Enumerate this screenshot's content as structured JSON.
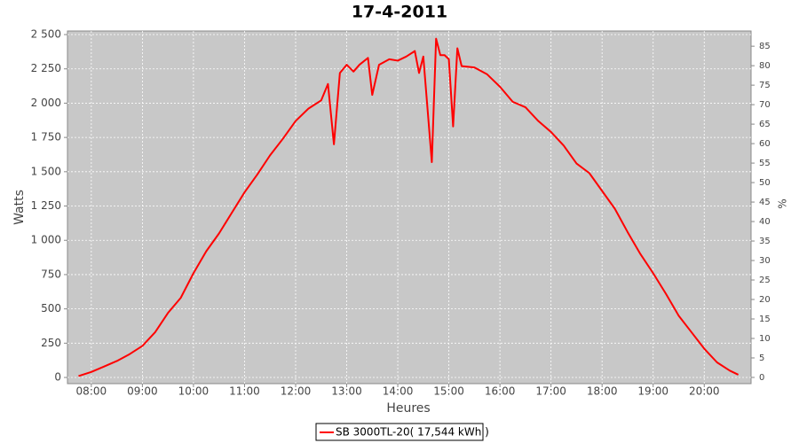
{
  "chart_data": {
    "type": "line",
    "title": "17-4-2011",
    "x_label": "Heures",
    "y_label": "Watts",
    "y2_label": "%",
    "x": [
      "07:45",
      "08:00",
      "08:15",
      "08:30",
      "08:45",
      "09:00",
      "09:15",
      "09:30",
      "09:45",
      "10:00",
      "10:15",
      "10:30",
      "10:45",
      "11:00",
      "11:15",
      "11:30",
      "11:45",
      "12:00",
      "12:15",
      "12:30",
      "12:38",
      "12:45",
      "12:52",
      "13:00",
      "13:08",
      "13:15",
      "13:25",
      "13:30",
      "13:38",
      "13:50",
      "14:00",
      "14:10",
      "14:20",
      "14:25",
      "14:30",
      "14:40",
      "14:45",
      "14:50",
      "14:55",
      "15:00",
      "15:05",
      "15:10",
      "15:15",
      "15:30",
      "15:45",
      "16:00",
      "16:15",
      "16:30",
      "16:45",
      "17:00",
      "17:15",
      "17:30",
      "17:45",
      "18:00",
      "18:15",
      "18:30",
      "18:45",
      "19:00",
      "19:15",
      "19:30",
      "19:45",
      "20:00",
      "20:15",
      "20:30",
      "20:40"
    ],
    "series": [
      {
        "name": "SB 3000TL-20( 17,544 kWh )",
        "color": "#ff0000",
        "values": [
          10,
          40,
          80,
          120,
          170,
          230,
          330,
          470,
          580,
          760,
          920,
          1050,
          1200,
          1350,
          1480,
          1620,
          1740,
          1870,
          1960,
          2020,
          2140,
          1700,
          2220,
          2280,
          2230,
          2280,
          2330,
          2060,
          2280,
          2320,
          2310,
          2340,
          2380,
          2220,
          2340,
          1570,
          2470,
          2350,
          2350,
          2320,
          1830,
          2400,
          2270,
          2260,
          2210,
          2120,
          2010,
          1970,
          1870,
          1790,
          1690,
          1560,
          1490,
          1360,
          1230,
          1060,
          900,
          760,
          610,
          450,
          330,
          210,
          110,
          50,
          20
        ]
      }
    ],
    "xlim": [
      "07:32",
      "20:55"
    ],
    "xticks": [
      "08:00",
      "09:00",
      "10:00",
      "11:00",
      "12:00",
      "13:00",
      "14:00",
      "15:00",
      "16:00",
      "17:00",
      "18:00",
      "19:00",
      "20:00"
    ],
    "ylim": [
      -45,
      2526
    ],
    "yticks": [
      0,
      250,
      500,
      750,
      {
        "value": 1000,
        "label": "1 000"
      },
      {
        "value": 1250,
        "label": "1 250"
      },
      {
        "value": 1500,
        "label": "1 500"
      },
      {
        "value": 1750,
        "label": "1 750"
      },
      {
        "value": 2000,
        "label": "2 000"
      },
      {
        "value": 2250,
        "label": "2 250"
      },
      {
        "value": 2500,
        "label": "2 500"
      }
    ],
    "y2lim": [
      -1.6,
      88.9
    ],
    "y2ticks": [
      0,
      5,
      10,
      15,
      20,
      25,
      30,
      35,
      40,
      45,
      50,
      55,
      60,
      65,
      70,
      75,
      80,
      85
    ],
    "grid": true
  }
}
